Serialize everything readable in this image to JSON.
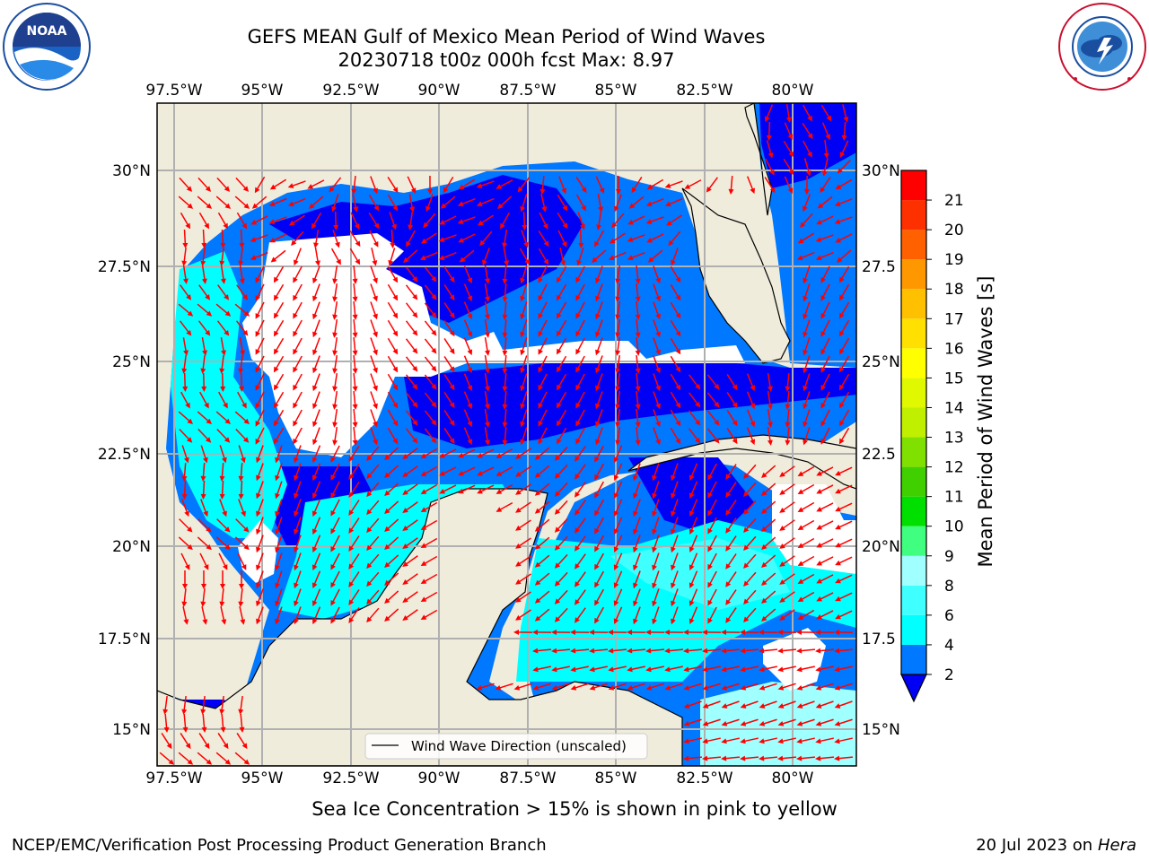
{
  "header": {
    "title_line1": "GEFS MEAN Gulf of Mexico Mean Period of Wind Waves",
    "title_line2": "20230718 t00z 000h fcst   Max: 8.97"
  },
  "logos": {
    "left": {
      "name": "NOAA",
      "ring_text": "NATIONAL OCEANIC AND ATMOSPHERIC ADMINISTRATION · U.S. DEPARTMENT OF COMMERCE"
    },
    "right": {
      "name": "NATIONAL WEATHER SERVICE"
    }
  },
  "map": {
    "lon_labels": [
      "97.5°W",
      "95°W",
      "92.5°W",
      "90°W",
      "87.5°W",
      "85°W",
      "82.5°W",
      "80°W"
    ],
    "lat_labels_left": [
      "30°N",
      "27.5°N",
      "25°N",
      "22.5°N",
      "20°N",
      "17.5°N",
      "15°N"
    ],
    "lat_labels_right": [
      "30°N",
      "27.5",
      "25°N",
      "22.5",
      "20°N",
      "17.5",
      "15°N"
    ],
    "legend_label": "Wind Wave Direction (unscaled)",
    "colors": {
      "land": "#efecdc",
      "ocean_2_4": "#0078ff",
      "ocean_lt2": "#0000f5",
      "ocean_4_6": "#00ffff",
      "ocean_6_8": "#40ffff",
      "ocean_8_9": "#a0ffff",
      "grid": "#b0b0b0",
      "arrow": "#ff0000"
    }
  },
  "colorbar": {
    "title": "Mean Period of Wind Waves [s]",
    "ticks": [
      "2",
      "4",
      "6",
      "8",
      "9",
      "10",
      "11",
      "12",
      "13",
      "14",
      "15",
      "16",
      "17",
      "18",
      "19",
      "20",
      "21"
    ],
    "colors": [
      "#0078ff",
      "#00ffff",
      "#40ffff",
      "#a0ffff",
      "#40ff80",
      "#00e000",
      "#40d000",
      "#80e000",
      "#c0f000",
      "#e0f800",
      "#ffff00",
      "#ffe000",
      "#ffc000",
      "#ff9800",
      "#ff6000",
      "#ff3000",
      "#ff0000"
    ],
    "under_color": "#0000f5"
  },
  "notes": {
    "sea_ice": "Sea Ice Concentration > 15% is shown in pink to yellow",
    "credit": "NCEP/EMC/Verification Post Processing Product Generation Branch",
    "date_prefix": "20 Jul 2023 on ",
    "host": "Hera"
  }
}
